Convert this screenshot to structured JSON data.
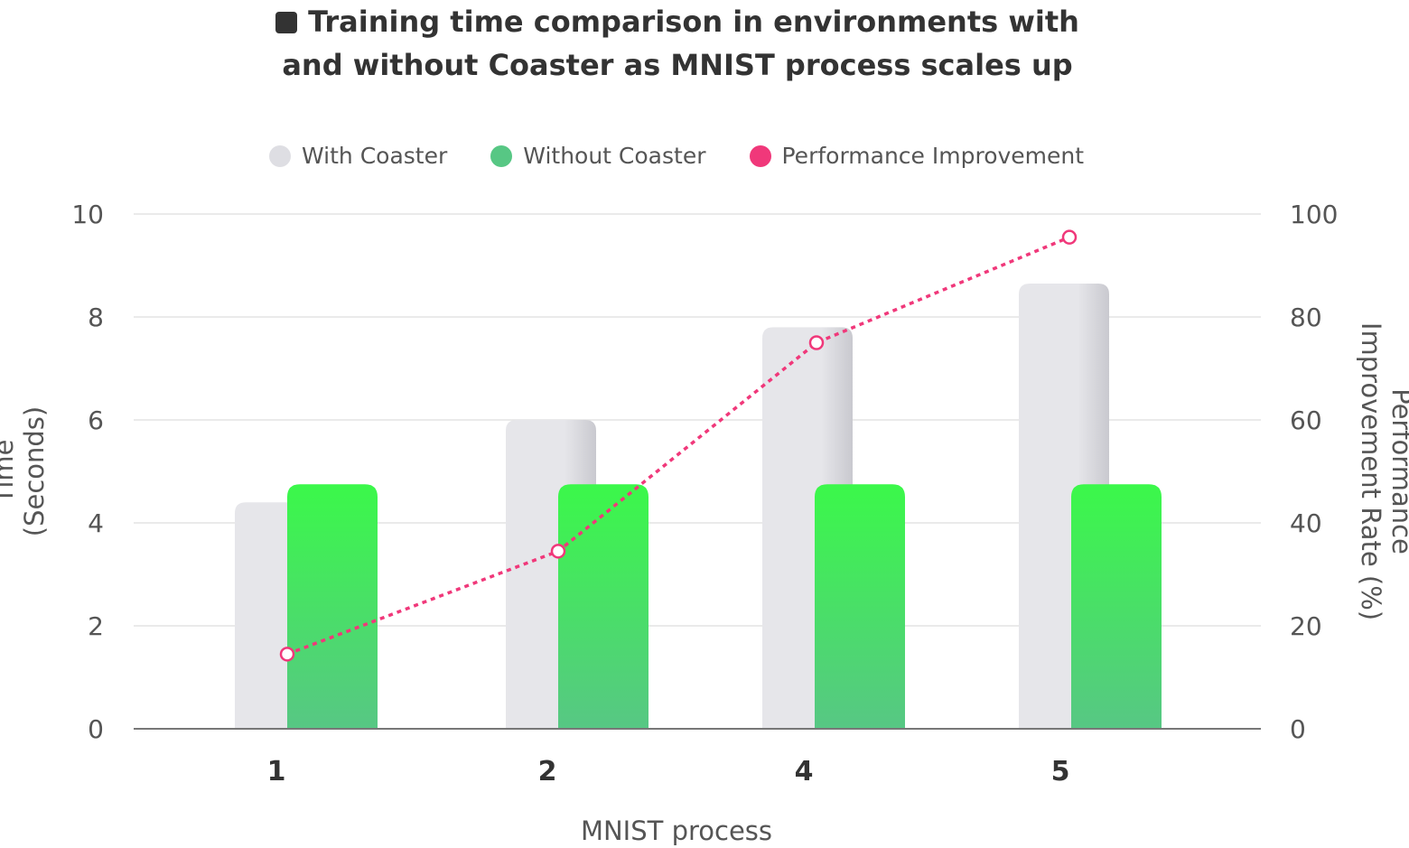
{
  "chart_data": {
    "type": "bar",
    "title_lines": [
      "Training time comparison in environments with",
      "and without Coaster as MNIST process scales up"
    ],
    "xlabel": "MNIST process",
    "ylabel": [
      "Time",
      "(Seconds)"
    ],
    "y2label": [
      "Performance",
      "Improvement Rate (%)"
    ],
    "categories": [
      "1",
      "2",
      "4",
      "5"
    ],
    "ylim": [
      0,
      10
    ],
    "y_ticks": [
      "0",
      "2",
      "4",
      "6",
      "8",
      "10"
    ],
    "y2lim": [
      0,
      100
    ],
    "y2_ticks": [
      "0",
      "20",
      "40",
      "60",
      "80",
      "100"
    ],
    "legend_position": "top",
    "grid": true,
    "series": [
      {
        "name": "With Coaster",
        "type": "bar",
        "axis": "left",
        "color": "#e4e4e8",
        "values": [
          4.4,
          6.0,
          7.8,
          8.65
        ]
      },
      {
        "name": "Without Coaster",
        "type": "bar",
        "axis": "left",
        "color": "#3bf84a",
        "color_bottom": "#57c784",
        "values": [
          4.75,
          4.75,
          4.75,
          4.75
        ]
      },
      {
        "name": "Performance Improvement",
        "type": "line",
        "style": "dotted",
        "axis": "right",
        "color": "#f0387a",
        "values": [
          14.5,
          34.5,
          75,
          95.5
        ]
      }
    ]
  }
}
